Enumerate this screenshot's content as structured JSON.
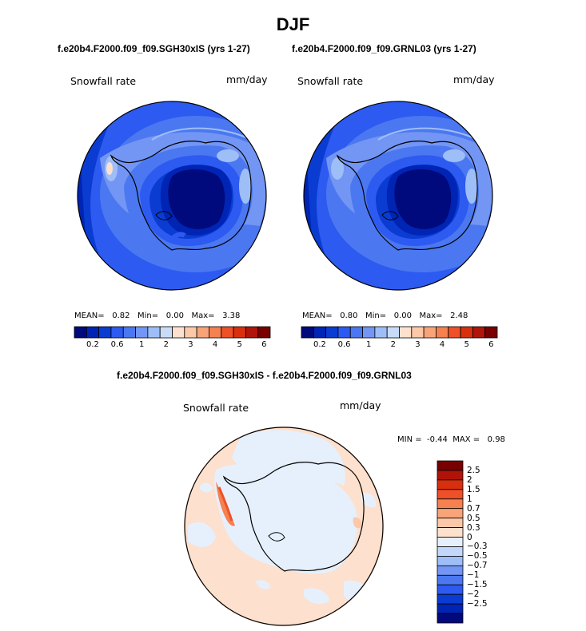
{
  "title": "DJF",
  "panels": [
    {
      "case": "f.e20b4.F2000.f09_f09.SGH30xIS (yrs 1-27)",
      "variable": "Snowfall rate",
      "units": "mm/day",
      "stats": {
        "mean_label": "MEAN=",
        "mean": "0.82",
        "min_label": "Min=",
        "min": "0.00",
        "max_label": "Max=",
        "max": "3.38"
      },
      "colorbar_ticks": [
        "0.2",
        "0.6",
        "1",
        "2",
        "3",
        "4",
        "5",
        "6"
      ]
    },
    {
      "case": "f.e20b4.F2000.f09_f09.GRNL03 (yrs 1-27)",
      "variable": "Snowfall rate",
      "units": "mm/day",
      "stats": {
        "mean_label": "MEAN=",
        "mean": "0.80",
        "min_label": "Min=",
        "min": "0.00",
        "max_label": "Max=",
        "max": "2.48"
      },
      "colorbar_ticks": [
        "0.2",
        "0.6",
        "1",
        "2",
        "3",
        "4",
        "5",
        "6"
      ]
    }
  ],
  "difference": {
    "case": "f.e20b4.F2000.f09_f09.SGH30xIS - f.e20b4.F2000.f09_f09.GRNL03",
    "variable": "Snowfall rate",
    "units": "mm/day",
    "stats": {
      "min_label": "MIN =",
      "min": "-0.44",
      "max_label": "MAX =",
      "max": "0.98"
    },
    "colorbar_ticks": [
      "2.5",
      "2",
      "1.5",
      "1",
      "0.7",
      "0.5",
      "0.3",
      "0",
      "−0.3",
      "−0.5",
      "−0.7",
      "−1",
      "−1.5",
      "−2",
      "−2.5"
    ]
  },
  "colors": {
    "abs_scale": [
      "#000a7c",
      "#0024b4",
      "#0a3cd2",
      "#2d5af0",
      "#4b78f0",
      "#7396f5",
      "#9ebef8",
      "#c8dcfa",
      "#fde0cd",
      "#fcc8a8",
      "#f8a478",
      "#f58050",
      "#ee5028",
      "#d8300e",
      "#b0140a",
      "#780000"
    ],
    "diff_scale": [
      "#780000",
      "#b01408",
      "#d8300e",
      "#ee5028",
      "#f58050",
      "#f8a478",
      "#fcc8a8",
      "#fde0cd",
      "#e6f0fc",
      "#c3d7fa",
      "#9ebef8",
      "#7396f5",
      "#4b78f0",
      "#2d5af0",
      "#0a3cd2",
      "#0024b4",
      "#000a7c"
    ]
  }
}
